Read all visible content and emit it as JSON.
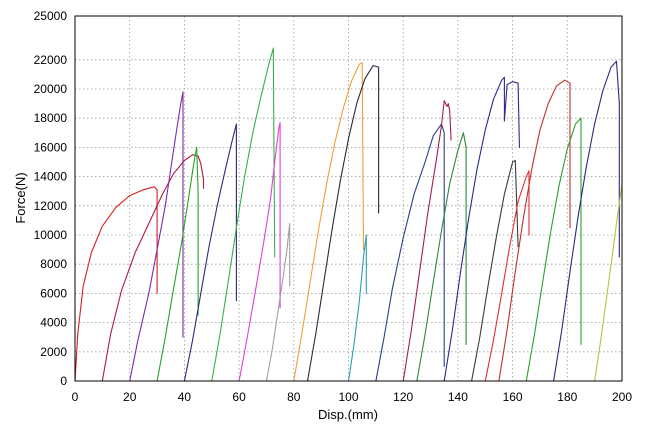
{
  "chart_data": {
    "type": "line",
    "title": "",
    "xlabel": "Disp.(mm)",
    "ylabel": "Force(N)",
    "xlim": [
      0,
      200
    ],
    "ylim": [
      0,
      25000
    ],
    "xticks": [
      0,
      20,
      40,
      60,
      80,
      100,
      120,
      140,
      160,
      180,
      200
    ],
    "yticks": [
      0,
      2000,
      4000,
      6000,
      8000,
      10000,
      12000,
      14000,
      16000,
      18000,
      20000,
      22000,
      25000
    ],
    "grid": true,
    "legend": "none",
    "series": [
      {
        "color": "#d62020",
        "points": [
          [
            0,
            0
          ],
          [
            1,
            3200
          ],
          [
            3,
            6500
          ],
          [
            6,
            8800
          ],
          [
            10,
            10600
          ],
          [
            15,
            11900
          ],
          [
            20,
            12700
          ],
          [
            25,
            13100
          ],
          [
            29,
            13300
          ],
          [
            30,
            13100
          ],
          [
            30,
            6000
          ]
        ]
      },
      {
        "color": "#b01840",
        "points": [
          [
            10,
            0
          ],
          [
            13,
            3200
          ],
          [
            17,
            6200
          ],
          [
            22,
            8800
          ],
          [
            28,
            11200
          ],
          [
            32,
            12800
          ],
          [
            36,
            14200
          ],
          [
            40,
            15100
          ],
          [
            43,
            15500
          ],
          [
            45,
            15400
          ],
          [
            46,
            14900
          ],
          [
            47,
            13800
          ],
          [
            47,
            13200
          ]
        ]
      },
      {
        "color": "#7d2aa8",
        "points": [
          [
            20,
            0
          ],
          [
            23,
            2800
          ],
          [
            27,
            6000
          ],
          [
            30,
            9000
          ],
          [
            33,
            12000
          ],
          [
            35,
            14500
          ],
          [
            37,
            17000
          ],
          [
            38.5,
            18800
          ],
          [
            39.5,
            19800
          ],
          [
            39.5,
            3000
          ]
        ]
      },
      {
        "color": "#2ca02c",
        "points": [
          [
            30,
            0
          ],
          [
            33,
            3000
          ],
          [
            36,
            6300
          ],
          [
            39,
            9500
          ],
          [
            41.5,
            12500
          ],
          [
            43.5,
            15000
          ],
          [
            44.5,
            16000
          ],
          [
            45,
            13000
          ],
          [
            45,
            4500
          ]
        ]
      },
      {
        "color": "#2b2b7a",
        "points": [
          [
            40,
            0
          ],
          [
            43,
            2800
          ],
          [
            46,
            6000
          ],
          [
            49,
            9200
          ],
          [
            52,
            12000
          ],
          [
            55,
            14500
          ],
          [
            57.5,
            16500
          ],
          [
            59,
            17600
          ],
          [
            59,
            5500
          ]
        ]
      },
      {
        "color": "#36b14a",
        "points": [
          [
            50,
            0
          ],
          [
            53,
            3200
          ],
          [
            56,
            6800
          ],
          [
            59,
            10500
          ],
          [
            62,
            14000
          ],
          [
            65,
            17000
          ],
          [
            68,
            19500
          ],
          [
            71,
            21800
          ],
          [
            72.5,
            22800
          ],
          [
            73,
            8500
          ]
        ]
      },
      {
        "color": "#e040d8",
        "points": [
          [
            60,
            0
          ],
          [
            63,
            3000
          ],
          [
            66,
            6200
          ],
          [
            69,
            9500
          ],
          [
            71.5,
            12500
          ],
          [
            73,
            15000
          ],
          [
            74.5,
            17300
          ],
          [
            75,
            17700
          ],
          [
            75,
            5000
          ]
        ]
      },
      {
        "color": "#a0a0a0",
        "points": [
          [
            70,
            0
          ],
          [
            72,
            2000
          ],
          [
            74,
            4500
          ],
          [
            76,
            7000
          ],
          [
            77.5,
            9000
          ],
          [
            78.5,
            10800
          ],
          [
            78.5,
            6500
          ]
        ]
      },
      {
        "color": "#f0a030",
        "points": [
          [
            80,
            0
          ],
          [
            83,
            3300
          ],
          [
            86,
            6800
          ],
          [
            89,
            10300
          ],
          [
            92,
            13500
          ],
          [
            95,
            16300
          ],
          [
            98,
            18600
          ],
          [
            101,
            20500
          ],
          [
            104,
            21700
          ],
          [
            105,
            21800
          ],
          [
            105.5,
            9000
          ]
        ]
      },
      {
        "color": "#2a2a3a",
        "points": [
          [
            85,
            0
          ],
          [
            88,
            3200
          ],
          [
            91,
            6800
          ],
          [
            94,
            10400
          ],
          [
            97,
            13700
          ],
          [
            100,
            16600
          ],
          [
            103,
            19000
          ],
          [
            106,
            20700
          ],
          [
            109,
            21600
          ],
          [
            111,
            21500
          ],
          [
            111,
            11500
          ]
        ]
      },
      {
        "color": "#2aa0b0",
        "points": [
          [
            100,
            0
          ],
          [
            102,
            2500
          ],
          [
            104,
            5500
          ],
          [
            105.5,
            8500
          ],
          [
            106.5,
            10000
          ],
          [
            106.5,
            6000
          ]
        ]
      },
      {
        "color": "#2a3f8a",
        "points": [
          [
            110,
            0
          ],
          [
            113,
            3000
          ],
          [
            116,
            6300
          ],
          [
            120,
            9800
          ],
          [
            124,
            12800
          ],
          [
            128,
            15000
          ],
          [
            131,
            16800
          ],
          [
            134,
            17600
          ],
          [
            135,
            17000
          ],
          [
            135,
            1000
          ]
        ]
      },
      {
        "color": "#a02050",
        "points": [
          [
            120,
            0
          ],
          [
            123,
            3500
          ],
          [
            126,
            7500
          ],
          [
            129,
            11500
          ],
          [
            132,
            15000
          ],
          [
            134,
            17500
          ],
          [
            135,
            19200
          ],
          [
            136,
            18800
          ],
          [
            136.5,
            19000
          ],
          [
            137,
            18500
          ],
          [
            137.5,
            16500
          ]
        ]
      },
      {
        "color": "#2a8a3a",
        "points": [
          [
            125,
            0
          ],
          [
            128,
            3200
          ],
          [
            131,
            6800
          ],
          [
            134,
            10300
          ],
          [
            137,
            13500
          ],
          [
            140,
            15800
          ],
          [
            142,
            17000
          ],
          [
            143,
            16000
          ],
          [
            143,
            2500
          ]
        ]
      },
      {
        "color": "#2a2a8a",
        "points": [
          [
            135,
            0
          ],
          [
            138,
            3500
          ],
          [
            141,
            7500
          ],
          [
            144,
            11200
          ],
          [
            147,
            14500
          ],
          [
            150,
            17200
          ],
          [
            153,
            19300
          ],
          [
            156,
            20600
          ],
          [
            157,
            20800
          ],
          [
            157,
            17800
          ],
          [
            158,
            20300
          ],
          [
            160,
            20500
          ],
          [
            162,
            20400
          ],
          [
            162.5,
            16000
          ]
        ]
      },
      {
        "color": "#3a3a3a",
        "points": [
          [
            145,
            0
          ],
          [
            148,
            3000
          ],
          [
            151,
            6500
          ],
          [
            154,
            9800
          ],
          [
            157,
            12800
          ],
          [
            160,
            15000
          ],
          [
            161,
            15100
          ],
          [
            162,
            9200
          ]
        ]
      },
      {
        "color": "#e03030",
        "points": [
          [
            150,
            0
          ],
          [
            153,
            2800
          ],
          [
            156,
            6000
          ],
          [
            159,
            9300
          ],
          [
            162,
            12300
          ],
          [
            165,
            14000
          ],
          [
            166,
            14400
          ],
          [
            166,
            10000
          ]
        ]
      },
      {
        "color": "#c03030",
        "points": [
          [
            155,
            0
          ],
          [
            158,
            3500
          ],
          [
            161,
            7500
          ],
          [
            164,
            11200
          ],
          [
            167,
            14500
          ],
          [
            170,
            17200
          ],
          [
            173,
            19000
          ],
          [
            176,
            20200
          ],
          [
            179,
            20600
          ],
          [
            181,
            20400
          ],
          [
            181,
            10500
          ]
        ]
      },
      {
        "color": "#2ca02c",
        "points": [
          [
            165,
            0
          ],
          [
            168,
            3200
          ],
          [
            171,
            6800
          ],
          [
            174,
            10300
          ],
          [
            177,
            13400
          ],
          [
            180,
            15900
          ],
          [
            183,
            17600
          ],
          [
            185,
            18000
          ],
          [
            185,
            2500
          ]
        ]
      },
      {
        "color": "#2a2a7a",
        "points": [
          [
            175,
            0
          ],
          [
            178,
            3500
          ],
          [
            181,
            7500
          ],
          [
            184,
            11300
          ],
          [
            187,
            14700
          ],
          [
            190,
            17600
          ],
          [
            193,
            19900
          ],
          [
            196,
            21500
          ],
          [
            198,
            21900
          ],
          [
            199,
            19000
          ],
          [
            199,
            8500
          ]
        ]
      },
      {
        "color": "#c0c040",
        "points": [
          [
            190,
            0
          ],
          [
            192,
            2500
          ],
          [
            194,
            5200
          ],
          [
            196,
            8000
          ],
          [
            198,
            10800
          ],
          [
            200,
            13500
          ]
        ]
      }
    ]
  }
}
